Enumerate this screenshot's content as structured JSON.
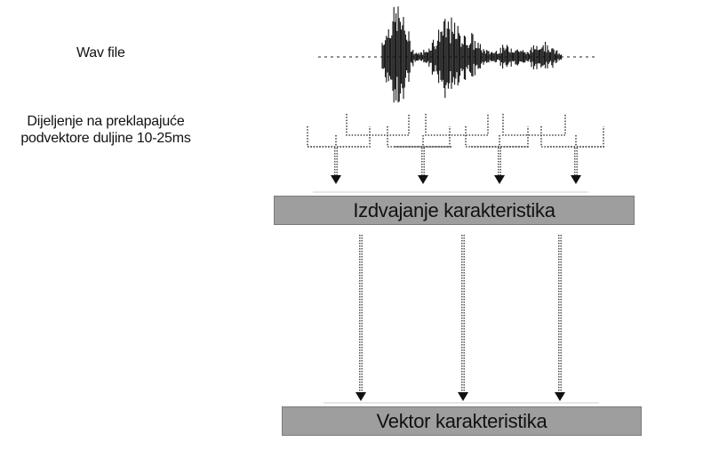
{
  "labels": {
    "wav_file": "Wav file",
    "split_line1": "Dijeljenje na preklapajuće",
    "split_line2": "podvektore duljine 10-25ms"
  },
  "boxes": {
    "feature_extraction": "Izdvajanje karakteristika",
    "feature_vector": "Vektor karakteristika"
  },
  "colors": {
    "box_fill": "#9e9e9e",
    "line": "#333333"
  }
}
